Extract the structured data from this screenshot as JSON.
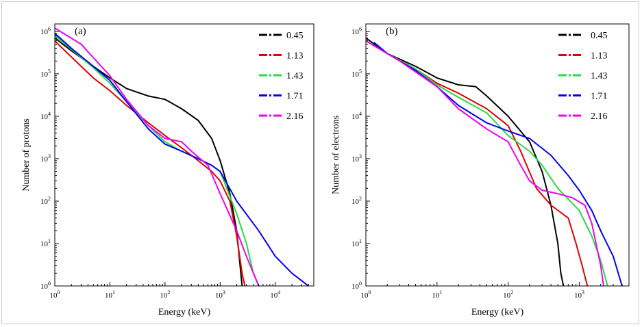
{
  "chart_data": [
    {
      "type": "line",
      "panel_label": "(a)",
      "xlabel": "Energy (keV)",
      "ylabel": "Number of protons",
      "xscale": "log",
      "yscale": "log",
      "xlim": [
        1,
        50000
      ],
      "ylim": [
        1,
        1500000
      ],
      "x_ticks": [
        {
          "value": 1,
          "base": "10",
          "exp": "0"
        },
        {
          "value": 10,
          "base": "10",
          "exp": "1"
        },
        {
          "value": 100,
          "base": "10",
          "exp": "2"
        },
        {
          "value": 1000,
          "base": "10",
          "exp": "3"
        },
        {
          "value": 10000,
          "base": "10",
          "exp": "4"
        }
      ],
      "y_ticks": [
        {
          "value": 1,
          "base": "10",
          "exp": "0"
        },
        {
          "value": 10,
          "base": "10",
          "exp": "1"
        },
        {
          "value": 100,
          "base": "10",
          "exp": "2"
        },
        {
          "value": 1000,
          "base": "10",
          "exp": "3"
        },
        {
          "value": 10000,
          "base": "10",
          "exp": "4"
        },
        {
          "value": 100000,
          "base": "10",
          "exp": "5"
        },
        {
          "value": 1000000,
          "base": "10",
          "exp": "6"
        }
      ],
      "legend_position": "top-right",
      "series": [
        {
          "name": "0.45",
          "color": "#000000",
          "points": [
            [
              1,
              700000
            ],
            [
              2,
              350000
            ],
            [
              5,
              150000
            ],
            [
              10,
              80000
            ],
            [
              20,
              45000
            ],
            [
              50,
              30000
            ],
            [
              100,
              25000
            ],
            [
              200,
              15000
            ],
            [
              400,
              8000
            ],
            [
              700,
              3000
            ],
            [
              1000,
              900
            ],
            [
              1500,
              150
            ],
            [
              2000,
              20
            ],
            [
              2300,
              3
            ],
            [
              2500,
              1
            ]
          ]
        },
        {
          "name": "1.13",
          "color": "#e00000",
          "points": [
            [
              1,
              600000
            ],
            [
              2,
              250000
            ],
            [
              5,
              80000
            ],
            [
              10,
              40000
            ],
            [
              20,
              18000
            ],
            [
              50,
              7000
            ],
            [
              100,
              3500
            ],
            [
              200,
              1800
            ],
            [
              400,
              900
            ],
            [
              700,
              500
            ],
            [
              1000,
              300
            ],
            [
              1500,
              100
            ],
            [
              2000,
              15
            ],
            [
              2500,
              2
            ],
            [
              2800,
              1
            ]
          ]
        },
        {
          "name": "1.43",
          "color": "#22dd44",
          "points": [
            [
              1,
              800000
            ],
            [
              2,
              380000
            ],
            [
              5,
              140000
            ],
            [
              10,
              60000
            ],
            [
              20,
              22000
            ],
            [
              50,
              6000
            ],
            [
              100,
              2500
            ],
            [
              200,
              1500
            ],
            [
              400,
              1000
            ],
            [
              700,
              700
            ],
            [
              1000,
              500
            ],
            [
              2000,
              50
            ],
            [
              3000,
              10
            ],
            [
              4000,
              2
            ],
            [
              5000,
              1
            ]
          ]
        },
        {
          "name": "1.71",
          "color": "#0000ee",
          "points": [
            [
              1,
              900000
            ],
            [
              2,
              400000
            ],
            [
              5,
              150000
            ],
            [
              10,
              70000
            ],
            [
              20,
              22000
            ],
            [
              50,
              5000
            ],
            [
              100,
              2200
            ],
            [
              200,
              1500
            ],
            [
              400,
              1000
            ],
            [
              700,
              700
            ],
            [
              1000,
              500
            ],
            [
              2000,
              100
            ],
            [
              5000,
              20
            ],
            [
              10000,
              5
            ],
            [
              20000,
              2
            ],
            [
              40000,
              1
            ]
          ]
        },
        {
          "name": "2.16",
          "color": "#ee00ee",
          "points": [
            [
              1,
              1200000
            ],
            [
              3,
              500000
            ],
            [
              10,
              90000
            ],
            [
              20,
              25000
            ],
            [
              50,
              6000
            ],
            [
              100,
              3000
            ],
            [
              200,
              2500
            ],
            [
              300,
              1500
            ],
            [
              600,
              700
            ],
            [
              1000,
              150
            ],
            [
              2000,
              20
            ],
            [
              3000,
              5
            ],
            [
              5000,
              1
            ]
          ]
        }
      ]
    },
    {
      "type": "line",
      "panel_label": "(b)",
      "xlabel": "Energy (keV)",
      "ylabel": "Number of electrons",
      "xscale": "log",
      "yscale": "log",
      "xlim": [
        1,
        5000
      ],
      "ylim": [
        1,
        1500000
      ],
      "x_ticks": [
        {
          "value": 1,
          "base": "10",
          "exp": "0"
        },
        {
          "value": 10,
          "base": "10",
          "exp": "1"
        },
        {
          "value": 100,
          "base": "10",
          "exp": "2"
        },
        {
          "value": 1000,
          "base": "10",
          "exp": "3"
        }
      ],
      "y_ticks": [
        {
          "value": 1,
          "base": "10",
          "exp": "0"
        },
        {
          "value": 10,
          "base": "10",
          "exp": "1"
        },
        {
          "value": 100,
          "base": "10",
          "exp": "2"
        },
        {
          "value": 1000,
          "base": "10",
          "exp": "3"
        },
        {
          "value": 10000,
          "base": "10",
          "exp": "4"
        },
        {
          "value": 100000,
          "base": "10",
          "exp": "5"
        },
        {
          "value": 1000000,
          "base": "10",
          "exp": "6"
        }
      ],
      "legend_position": "top-right",
      "series": [
        {
          "name": "0.45",
          "color": "#000000",
          "points": [
            [
              1,
              700000
            ],
            [
              2,
              300000
            ],
            [
              5,
              150000
            ],
            [
              10,
              80000
            ],
            [
              20,
              55000
            ],
            [
              35,
              50000
            ],
            [
              50,
              30000
            ],
            [
              100,
              10000
            ],
            [
              200,
              2500
            ],
            [
              300,
              500
            ],
            [
              400,
              80
            ],
            [
              500,
              10
            ],
            [
              550,
              2
            ],
            [
              600,
              1
            ]
          ]
        },
        {
          "name": "1.13",
          "color": "#e00000",
          "points": [
            [
              1,
              600000
            ],
            [
              2,
              300000
            ],
            [
              5,
              130000
            ],
            [
              10,
              60000
            ],
            [
              20,
              35000
            ],
            [
              50,
              15000
            ],
            [
              100,
              6000
            ],
            [
              150,
              1500
            ],
            [
              250,
              200
            ],
            [
              400,
              80
            ],
            [
              700,
              40
            ],
            [
              900,
              10
            ],
            [
              1100,
              3
            ],
            [
              1300,
              1
            ]
          ]
        },
        {
          "name": "1.43",
          "color": "#22dd44",
          "points": [
            [
              1.3,
              550000
            ],
            [
              2,
              300000
            ],
            [
              5,
              130000
            ],
            [
              10,
              55000
            ],
            [
              20,
              28000
            ],
            [
              50,
              12000
            ],
            [
              100,
              3500
            ],
            [
              200,
              1500
            ],
            [
              300,
              700
            ],
            [
              500,
              200
            ],
            [
              1000,
              60
            ],
            [
              1500,
              15
            ],
            [
              2000,
              4
            ],
            [
              2500,
              1
            ]
          ]
        },
        {
          "name": "1.71",
          "color": "#0000ee",
          "points": [
            [
              1.3,
              550000
            ],
            [
              2,
              300000
            ],
            [
              5,
              120000
            ],
            [
              10,
              50000
            ],
            [
              20,
              18000
            ],
            [
              50,
              7000
            ],
            [
              100,
              4500
            ],
            [
              200,
              3000
            ],
            [
              400,
              1200
            ],
            [
              700,
              400
            ],
            [
              1000,
              180
            ],
            [
              1500,
              60
            ],
            [
              2000,
              20
            ],
            [
              3000,
              5
            ],
            [
              4000,
              1
            ]
          ]
        },
        {
          "name": "2.16",
          "color": "#ee00ee",
          "points": [
            [
              1,
              600000
            ],
            [
              3,
              200000
            ],
            [
              10,
              50000
            ],
            [
              20,
              15000
            ],
            [
              50,
              5000
            ],
            [
              100,
              2500
            ],
            [
              150,
              700
            ],
            [
              200,
              300
            ],
            [
              300,
              180
            ],
            [
              500,
              150
            ],
            [
              800,
              120
            ],
            [
              1200,
              80
            ],
            [
              1500,
              30
            ],
            [
              2000,
              3
            ],
            [
              2200,
              1
            ]
          ]
        }
      ]
    }
  ]
}
